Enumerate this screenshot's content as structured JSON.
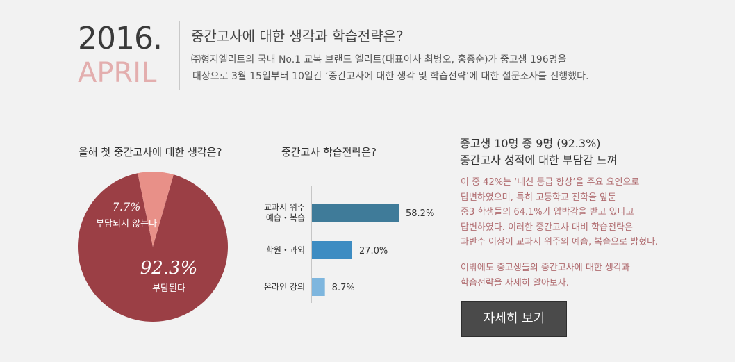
{
  "header": {
    "year": "2016.",
    "month": "APRIL",
    "headline": "중간고사에 대한 생각과 학습전략은?",
    "intro_lines": [
      "㈜형지엘리트의 국내 No.1 교복 브랜드 엘리트(대표이사 최병오, 홍종순)가 중고생 196명을",
      "대상으로 3월 15일부터 10일간 ‘중간고사에 대한 생각 및 학습전략’에 대한 설문조사를 진행했다."
    ]
  },
  "summary": {
    "title_lines": [
      "중고생 10명 중 9명 (92.3%)",
      "중간고사 성적에 대한 부담감 느껴"
    ],
    "body_lines": [
      "이 중 42%는 ‘내신 등급 향상’을 주요 요인으로",
      "답변하였으며, 특히 고등학교 진학을 앞둔",
      "중3 학생들의 64.1%가 압박감을 받고 있다고",
      "답변하였다. 이러한 중간고사 대비 학습전략은",
      "과반수 이상이 교과서 위주의 예습, 복습으로 밝혔다."
    ],
    "body2_lines": [
      "이밖에도 중고생들의 중간고사에 대한 생각과",
      "학습전략을 자세히 알아보자."
    ],
    "button_label": "자세히 보기"
  },
  "chart_data": [
    {
      "type": "pie",
      "title": "올해 첫 중간고사에 대한 생각은?",
      "slices": [
        {
          "label": "부담된다",
          "value": 92.3,
          "value_label": "92.3%",
          "color": "#9b3f45"
        },
        {
          "label": "부담되지 않는다",
          "value": 7.7,
          "value_label": "7.7%",
          "color": "#e89088"
        }
      ]
    },
    {
      "type": "bar",
      "orientation": "horizontal",
      "title": "중간고사 학습전략은?",
      "categories": [
        [
          "교과서 위주",
          "예습・복습"
        ],
        [
          "학원・과외"
        ],
        [
          "온라인 강의"
        ]
      ],
      "values": [
        58.2,
        27.0,
        8.7
      ],
      "value_labels": [
        "58.2%",
        "27.0%",
        "8.7%"
      ],
      "colors": [
        "#3f7b99",
        "#3d8cc2",
        "#7eb6de"
      ],
      "xlim": [
        0,
        100
      ],
      "grid": false
    }
  ]
}
